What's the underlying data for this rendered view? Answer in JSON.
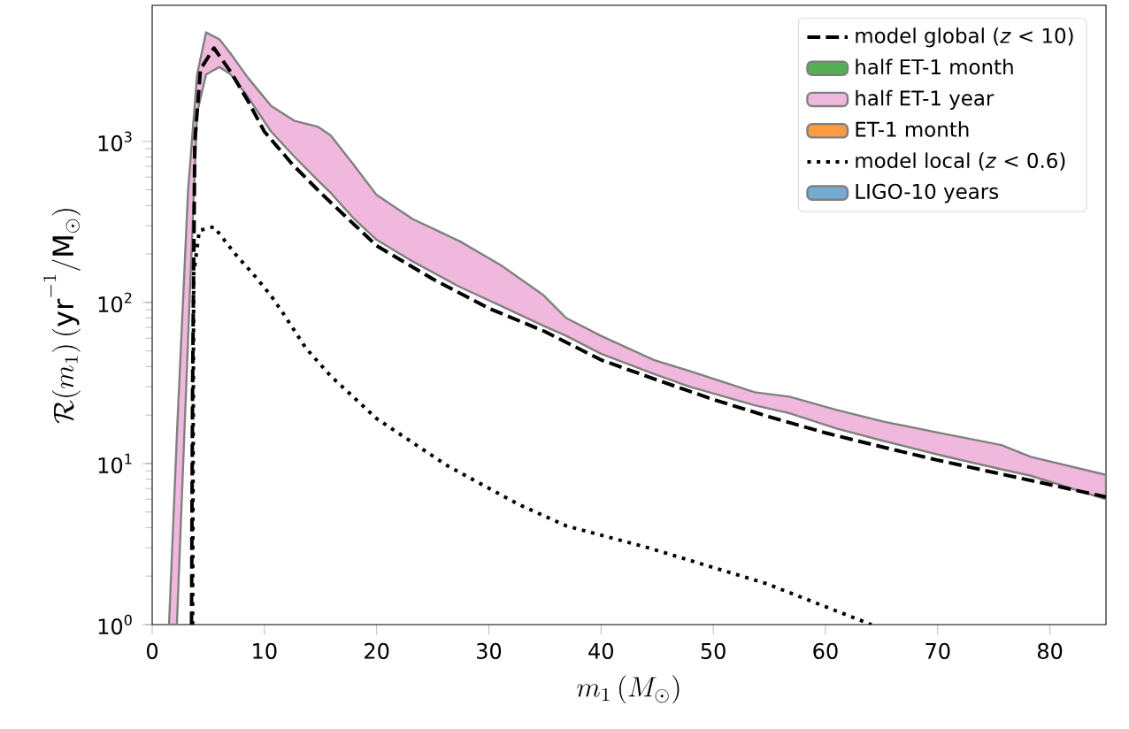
{
  "chart_data": {
    "type": "line",
    "xlabel": "m_1\\,(M_\\odot)",
    "ylabel": "\\mathcal{R}(m_1)\\,(\\mathrm{yr}^{-1}/\\mathrm{M}_\\odot)",
    "xlim": [
      0,
      85
    ],
    "ylim": [
      1,
      7000
    ],
    "log": "y",
    "grid": false,
    "legend": "top right",
    "xticks": [
      0,
      10,
      20,
      30,
      40,
      50,
      60,
      70,
      80
    ],
    "yticks": [
      {
        "value": 1,
        "label": "10$^{0}$"
      },
      {
        "value": 10,
        "label": "10$^{1}$"
      },
      {
        "value": 100,
        "label": "10$^{2}$"
      },
      {
        "value": 1000,
        "label": "10$^{3}$"
      }
    ],
    "series": [
      {
        "name": "model global (*z* < 10)",
        "line_style": "dashed",
        "color": "#000000",
        "x": [
          3.5,
          3.6,
          3.8,
          4.3,
          5.5,
          7,
          8.5,
          10,
          12.5,
          15,
          20,
          25,
          30,
          35,
          40,
          45,
          50,
          55,
          60,
          65,
          70,
          75,
          80,
          85
        ],
        "values": [
          1,
          30,
          1000,
          2800,
          3800,
          2700,
          1800,
          1150,
          720,
          480,
          225,
          140,
          92,
          66,
          44,
          33,
          25,
          19.5,
          15.5,
          12.7,
          10.5,
          8.8,
          7.4,
          6.2
        ]
      },
      {
        "name": "half ET-1 month",
        "type": "area",
        "color": "#55b054"
      },
      {
        "name": "half ET-1 year",
        "type": "area",
        "color": "#f0b8dc",
        "x": [
          1.5,
          2.2,
          3.2,
          4,
          4.8,
          6,
          7,
          8.5,
          10.6,
          12.7,
          14.8,
          15.9,
          18,
          20,
          23.2,
          27.4,
          31.1,
          34.8,
          36.9,
          40,
          44.7,
          47.9,
          53.7,
          56.8,
          61,
          65.2,
          70.4,
          75.7,
          78.3,
          85
        ],
        "values": [
          null,
          null,
          null,
          null,
          null,
          null,
          null,
          null,
          null,
          null,
          null,
          null,
          null,
          null,
          null,
          null,
          null,
          null,
          null,
          null,
          null,
          null,
          null,
          null,
          null,
          null,
          null,
          null,
          null,
          null
        ],
        "lower": [
          1,
          1,
          60,
          1500,
          2600,
          2900,
          2600,
          1900,
          1150,
          800,
          570,
          480,
          330,
          245,
          180,
          125,
          95,
          72,
          62,
          48,
          36,
          30,
          23,
          20.5,
          16.5,
          13.8,
          11.2,
          9.2,
          8.4,
          6.0
        ],
        "upper": [
          1,
          15,
          500,
          2600,
          4750,
          4300,
          3500,
          2500,
          1660,
          1340,
          1230,
          1090,
          710,
          465,
          330,
          240,
          170,
          112,
          80,
          62,
          44,
          37.5,
          27.7,
          26,
          21.5,
          18.2,
          15.4,
          13,
          11,
          8.5
        ]
      },
      {
        "name": "ET-1 month",
        "type": "area",
        "color": "#ff9a40"
      },
      {
        "name": "model local (*z* < 0.6)",
        "line_style": "dotted",
        "color": "#000000",
        "x": [
          3.6,
          3.7,
          4.2,
          5.5,
          7.4,
          9,
          10.6,
          11.7,
          13.7,
          15.9,
          20,
          26.3,
          32.6,
          36.9,
          44.2,
          54.7,
          64.1
        ],
        "values": [
          1,
          150,
          280,
          295,
          200,
          150,
          110,
          85,
          52,
          35,
          19,
          9.7,
          5.6,
          4.1,
          3.0,
          1.8,
          1.0
        ]
      },
      {
        "name": "LIGO-10 years",
        "type": "area",
        "color": "#77aad0"
      }
    ]
  }
}
